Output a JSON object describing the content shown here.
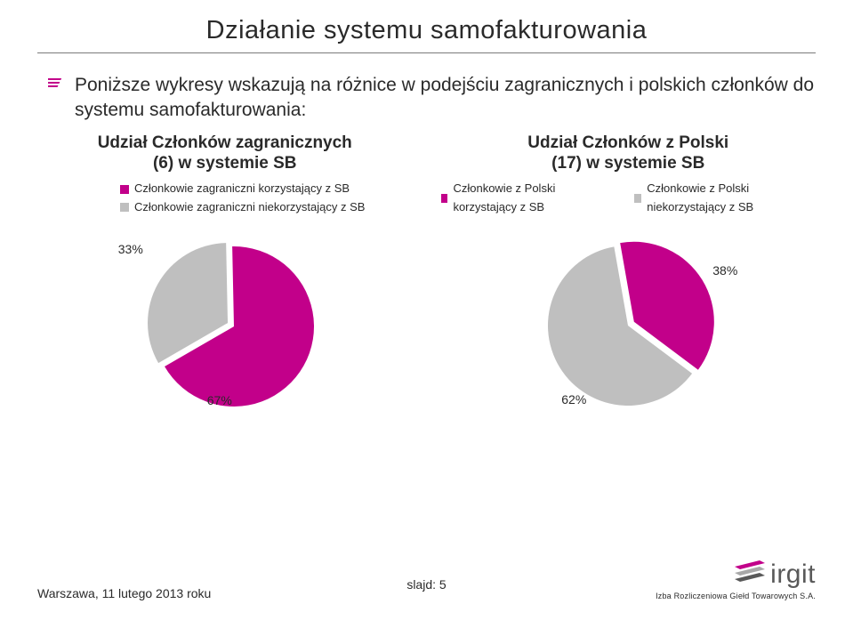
{
  "colors": {
    "magenta": "#c2008a",
    "grey": "#bfbfbf",
    "greyDark": "#a8a8a8",
    "text": "#2a2a2a",
    "logo_grey": "#595959",
    "underline": "#7a7a7a"
  },
  "title": "Działanie systemu samofakturowania",
  "bullet": "Poniższe wykresy wskazują na różnice w podejściu zagranicznych i polskich członków do systemu samofakturowania:",
  "chart_left": {
    "type": "pie",
    "title_line1": "Udział Członków zagranicznych",
    "title_line2": "(6) w systemie SB",
    "slices": [
      {
        "label": "Członkowie zagraniczni korzystający z SB",
        "value": 67,
        "color": "#c2008a",
        "pct_label": "67%"
      },
      {
        "label": "Członkowie zagraniczni niekorzystający z SB",
        "value": 33,
        "color": "#bfbfbf",
        "pct_label": "33%"
      }
    ],
    "label_fontsize": 13,
    "title_fontsize": 19
  },
  "chart_right": {
    "type": "pie",
    "title_line1": "Udział Członków z Polski",
    "title_line2": "(17) w systemie SB",
    "slices": [
      {
        "label": "Członkowie z Polski korzystający z SB",
        "value": 38,
        "color": "#c2008a",
        "pct_label": "38%"
      },
      {
        "label": "Członkowie z Polski niekorzystający z SB",
        "value": 62,
        "color": "#bfbfbf",
        "pct_label": "62%"
      }
    ],
    "label_fontsize": 13,
    "title_fontsize": 19
  },
  "footer": {
    "left": "Warszawa, 11 lutego 2013 roku",
    "center": "slajd: 5",
    "logo_word": "irgit",
    "logo_sub": "Izba Rozliczeniowa Giełd Towarowych S.A."
  }
}
